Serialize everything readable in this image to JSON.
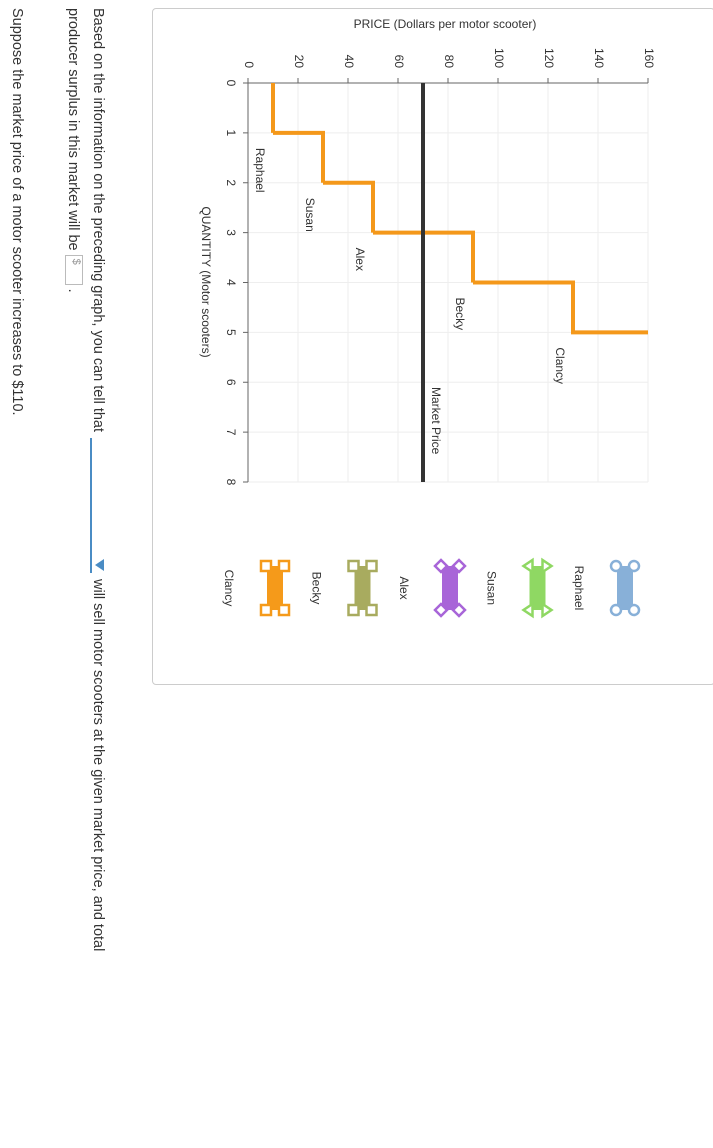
{
  "chart_data": {
    "type": "step",
    "y_label": "PRICE (Dollars per motor scooter)",
    "x_label": "QUANTITY (Motor scooters)",
    "xlim": [
      0,
      8
    ],
    "xticks": [
      0,
      1,
      2,
      3,
      4,
      5,
      6,
      7,
      8
    ],
    "ylim": [
      0,
      160
    ],
    "yticks": [
      0,
      20,
      40,
      60,
      80,
      100,
      120,
      140,
      160
    ],
    "grid": true,
    "line_color": "#f4981a",
    "sellers": [
      {
        "name": "Raphael",
        "price": 10,
        "color": "#88b0d8",
        "marker": "circle"
      },
      {
        "name": "Susan",
        "price": 30,
        "color": "#8fd863",
        "marker": "triangle"
      },
      {
        "name": "Alex",
        "price": 50,
        "color": "#a865d8",
        "marker": "diamond"
      },
      {
        "name": "Becky",
        "price": 90,
        "color": "#a8ab5f",
        "marker": "square"
      },
      {
        "name": "Clancy",
        "price": 130,
        "color": "#f59a1a",
        "marker": "square"
      }
    ],
    "market_price": {
      "label": "Market Price",
      "value": 70,
      "color": "#333333"
    }
  },
  "question": {
    "line1_start": "Based on the information on the preceding graph, you can tell that",
    "line1_end": "will sell motor scooters at the given market price, and total",
    "line2_start": "producer surplus in this market will be",
    "currency": "$",
    "line2_end": ".",
    "line3": "Suppose the market price of a motor scooter increases to $110."
  }
}
